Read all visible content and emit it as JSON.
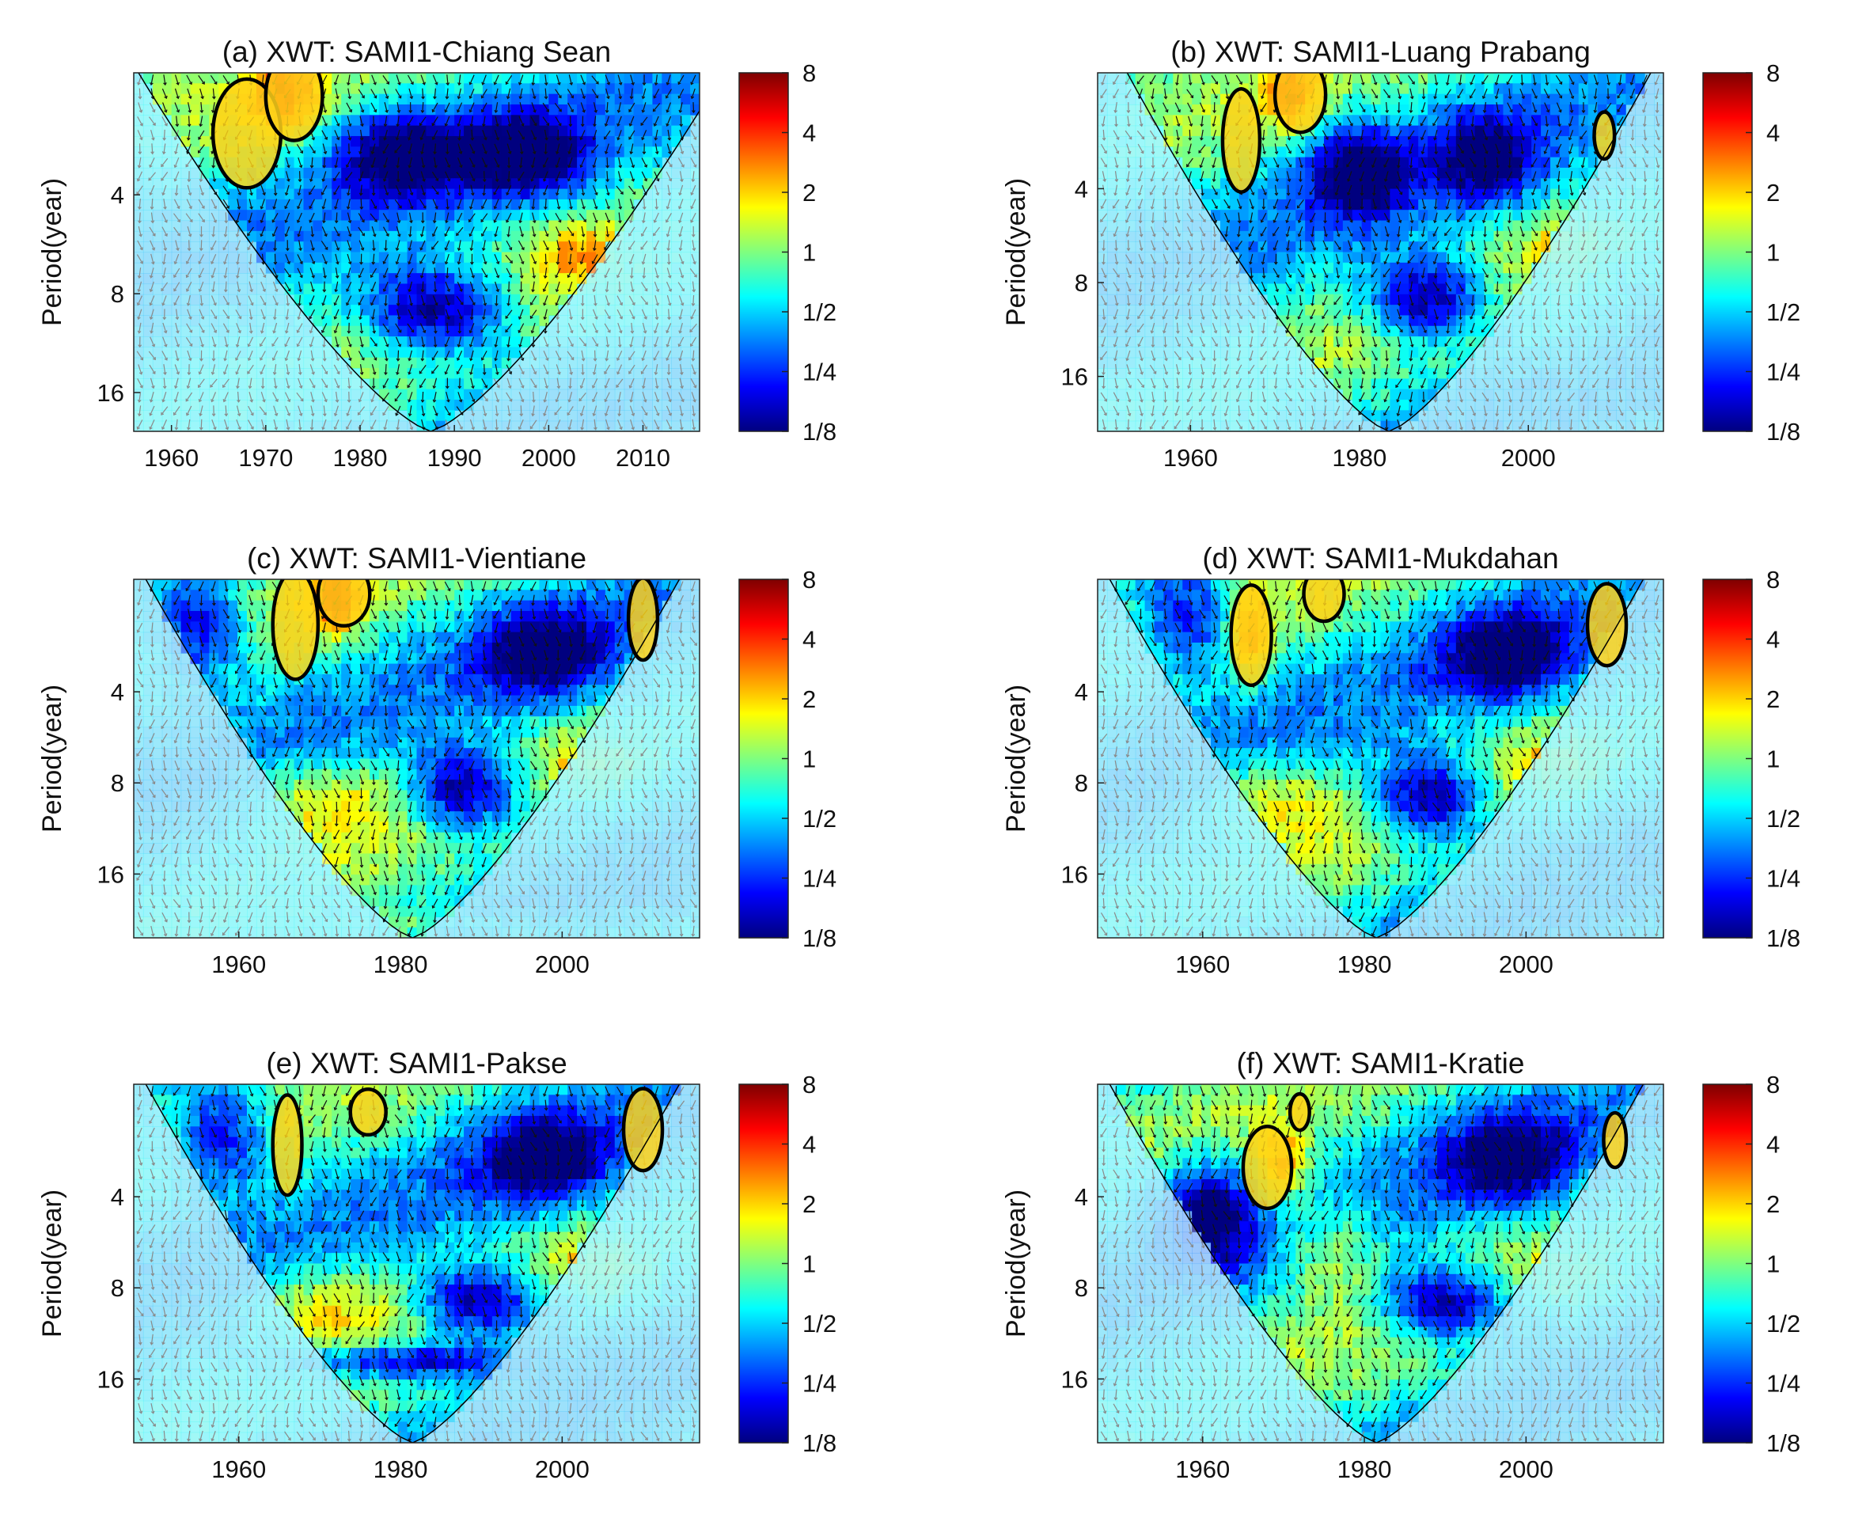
{
  "figure": {
    "y_axis_label": "Period(year)",
    "colorbar_ticks": [
      "8",
      "4",
      "2",
      "1",
      "1/2",
      "1/4",
      "1/8"
    ],
    "colormap": [
      "#00007f",
      "#0000ff",
      "#007fff",
      "#00ffff",
      "#7fff7f",
      "#ffff00",
      "#ff7f00",
      "#ff0000",
      "#7f0000"
    ],
    "outside_coi_color": "#7f9fd0",
    "arrow_color": "#111111",
    "outside_arrow_color": "#8a8a8a",
    "contour_color": "#000000",
    "significant_fill": "#ffd21a"
  },
  "chart_data": [
    {
      "id": "a",
      "type": "heatmap",
      "title": "(a) XWT: SAMI1-Chiang Sean",
      "xlabel": "",
      "ylabel": "Period(year)",
      "xlim": [
        1956,
        2016
      ],
      "xticks": [
        "1960",
        "1970",
        "1980",
        "1990",
        "2000",
        "2010"
      ],
      "xtick_values": [
        1960,
        1970,
        1980,
        1990,
        2000,
        2010
      ],
      "ylim": [
        1.7,
        21
      ],
      "yticks": [
        "4",
        "8",
        "16"
      ],
      "ytick_values": [
        4,
        8,
        16
      ],
      "coi_center_year": 1987.5,
      "coi_half_width_years": 31,
      "significant_regions": [
        {
          "cx": 1968,
          "cy": 2.6,
          "rx": 3.6,
          "ry": 0.55
        },
        {
          "cx": 1973,
          "cy": 2.0,
          "rx": 3.0,
          "ry": 0.45
        }
      ],
      "blobs": [
        {
          "cx": 1972,
          "cy": 2.0,
          "rx": 3.5,
          "ry": 0.35,
          "v": 2.2
        },
        {
          "cx": 1985,
          "cy": 3.0,
          "rx": 7.0,
          "ry": 0.45,
          "v": -2.6
        },
        {
          "cx": 1998,
          "cy": 3.0,
          "rx": 6.0,
          "ry": 0.45,
          "v": -2.4
        },
        {
          "cx": 1988,
          "cy": 9.0,
          "rx": 8.0,
          "ry": 0.45,
          "v": -3.0
        },
        {
          "cx": 2008,
          "cy": 10.0,
          "rx": 9.0,
          "ry": 0.5,
          "v": 0.5
        },
        {
          "cx": 2003,
          "cy": 6.0,
          "rx": 5.0,
          "ry": 0.3,
          "v": 1.2
        }
      ]
    },
    {
      "id": "b",
      "type": "heatmap",
      "title": "(b) XWT: SAMI1-Luang Prabang",
      "xlabel": "",
      "ylabel": "Period(year)",
      "xlim": [
        1949,
        2016
      ],
      "xticks": [
        "1960",
        "1980",
        "2000"
      ],
      "xtick_values": [
        1960,
        1980,
        2000
      ],
      "ylim": [
        1.7,
        24
      ],
      "yticks": [
        "4",
        "8",
        "16"
      ],
      "ytick_values": [
        4,
        8,
        16
      ],
      "coi_center_year": 1983.5,
      "coi_half_width_years": 31,
      "significant_regions": [
        {
          "cx": 1966,
          "cy": 2.8,
          "rx": 2.2,
          "ry": 0.55
        },
        {
          "cx": 1973,
          "cy": 2.0,
          "rx": 3.0,
          "ry": 0.4
        },
        {
          "cx": 2009,
          "cy": 2.7,
          "rx": 1.2,
          "ry": 0.25
        }
      ],
      "blobs": [
        {
          "cx": 1972,
          "cy": 2.0,
          "rx": 3.0,
          "ry": 0.35,
          "v": 2.2
        },
        {
          "cx": 1980,
          "cy": 3.5,
          "rx": 6.0,
          "ry": 0.5,
          "v": -2.5
        },
        {
          "cx": 1995,
          "cy": 3.2,
          "rx": 6.0,
          "ry": 0.5,
          "v": -2.2
        },
        {
          "cx": 1988,
          "cy": 9.0,
          "rx": 7.0,
          "ry": 0.45,
          "v": -3.0
        },
        {
          "cx": 2005,
          "cy": 6.0,
          "rx": 5.0,
          "ry": 0.3,
          "v": 1.2
        },
        {
          "cx": 2005,
          "cy": 12.0,
          "rx": 10.0,
          "ry": 0.5,
          "v": 0.5
        }
      ]
    },
    {
      "id": "c",
      "type": "heatmap",
      "title": "(c) XWT: SAMI1-Vientiane",
      "xlabel": "",
      "ylabel": "Period(year)",
      "xlim": [
        1947,
        2017
      ],
      "xticks": [
        "1960",
        "1980",
        "2000"
      ],
      "xtick_values": [
        1960,
        1980,
        2000
      ],
      "ylim": [
        1.7,
        26
      ],
      "yticks": [
        "4",
        "8",
        "16"
      ],
      "ytick_values": [
        4,
        8,
        16
      ],
      "coi_center_year": 1981.5,
      "coi_half_width_years": 33,
      "significant_regions": [
        {
          "cx": 1967,
          "cy": 2.4,
          "rx": 2.8,
          "ry": 0.6
        },
        {
          "cx": 1973,
          "cy": 1.9,
          "rx": 3.2,
          "ry": 0.35
        },
        {
          "cx": 2010,
          "cy": 2.3,
          "rx": 1.8,
          "ry": 0.45
        }
      ],
      "blobs": [
        {
          "cx": 1972,
          "cy": 2.0,
          "rx": 3.0,
          "ry": 0.35,
          "v": 2.4
        },
        {
          "cx": 1955,
          "cy": 2.5,
          "rx": 6.0,
          "ry": 0.6,
          "v": -2.5
        },
        {
          "cx": 1998,
          "cy": 3.0,
          "rx": 8.0,
          "ry": 0.5,
          "v": -2.3
        },
        {
          "cx": 1988,
          "cy": 8.5,
          "rx": 7.0,
          "ry": 0.45,
          "v": -3.0
        },
        {
          "cx": 1970,
          "cy": 9.0,
          "rx": 10.0,
          "ry": 0.45,
          "v": 1.2
        },
        {
          "cx": 2005,
          "cy": 7.0,
          "rx": 6.0,
          "ry": 0.35,
          "v": 1.3
        },
        {
          "cx": 1990,
          "cy": 24.0,
          "rx": 30.0,
          "ry": 0.2,
          "v": 1.0
        }
      ]
    },
    {
      "id": "d",
      "type": "heatmap",
      "title": "(d) XWT: SAMI1-Mukdahan",
      "xlabel": "",
      "ylabel": "Period(year)",
      "xlim": [
        1947,
        2017
      ],
      "xticks": [
        "1960",
        "1980",
        "2000"
      ],
      "xtick_values": [
        1960,
        1980,
        2000
      ],
      "ylim": [
        1.7,
        26
      ],
      "yticks": [
        "4",
        "8",
        "16"
      ],
      "ytick_values": [
        4,
        8,
        16
      ],
      "coi_center_year": 1981.5,
      "coi_half_width_years": 33,
      "significant_regions": [
        {
          "cx": 1966,
          "cy": 2.6,
          "rx": 2.5,
          "ry": 0.55
        },
        {
          "cx": 1975,
          "cy": 1.9,
          "rx": 2.5,
          "ry": 0.3
        },
        {
          "cx": 2010,
          "cy": 2.4,
          "rx": 2.4,
          "ry": 0.45
        }
      ],
      "blobs": [
        {
          "cx": 1966,
          "cy": 2.6,
          "rx": 2.5,
          "ry": 0.45,
          "v": 2.0
        },
        {
          "cx": 1958,
          "cy": 2.3,
          "rx": 6.0,
          "ry": 0.6,
          "v": -2.4
        },
        {
          "cx": 1998,
          "cy": 3.0,
          "rx": 8.0,
          "ry": 0.5,
          "v": -2.3
        },
        {
          "cx": 1988,
          "cy": 9.0,
          "rx": 7.0,
          "ry": 0.45,
          "v": -3.0
        },
        {
          "cx": 1968,
          "cy": 9.0,
          "rx": 10.0,
          "ry": 0.45,
          "v": 1.2
        },
        {
          "cx": 2005,
          "cy": 7.0,
          "rx": 6.0,
          "ry": 0.35,
          "v": 1.3
        }
      ]
    },
    {
      "id": "e",
      "type": "heatmap",
      "title": "(e) XWT: SAMI1-Pakse",
      "xlabel": "",
      "ylabel": "Period(year)",
      "xlim": [
        1947,
        2017
      ],
      "xticks": [
        "1960",
        "1980",
        "2000"
      ],
      "xtick_values": [
        1960,
        1980,
        2000
      ],
      "ylim": [
        1.7,
        26
      ],
      "yticks": [
        "4",
        "8",
        "16"
      ],
      "ytick_values": [
        4,
        8,
        16
      ],
      "coi_center_year": 1981.5,
      "coi_half_width_years": 33,
      "significant_regions": [
        {
          "cx": 1966,
          "cy": 2.7,
          "rx": 1.8,
          "ry": 0.55
        },
        {
          "cx": 1976,
          "cy": 2.1,
          "rx": 2.2,
          "ry": 0.25
        },
        {
          "cx": 2010,
          "cy": 2.4,
          "rx": 2.4,
          "ry": 0.45
        }
      ],
      "blobs": [
        {
          "cx": 1958,
          "cy": 2.5,
          "rx": 6.0,
          "ry": 0.6,
          "v": -2.4
        },
        {
          "cx": 1998,
          "cy": 3.0,
          "rx": 8.0,
          "ry": 0.5,
          "v": -2.3
        },
        {
          "cx": 1990,
          "cy": 9.0,
          "rx": 8.0,
          "ry": 0.4,
          "v": -3.0
        },
        {
          "cx": 1970,
          "cy": 9.0,
          "rx": 10.0,
          "ry": 0.45,
          "v": 1.2
        },
        {
          "cx": 2005,
          "cy": 7.0,
          "rx": 6.0,
          "ry": 0.35,
          "v": 1.3
        },
        {
          "cx": 1980,
          "cy": 14.0,
          "rx": 14.0,
          "ry": 0.2,
          "v": -2.5
        }
      ]
    },
    {
      "id": "f",
      "type": "heatmap",
      "title": "(f) XWT: SAMI1-Kratie",
      "xlabel": "",
      "ylabel": "Period(year)",
      "xlim": [
        1947,
        2017
      ],
      "xticks": [
        "1960",
        "1980",
        "2000"
      ],
      "xtick_values": [
        1960,
        1980,
        2000
      ],
      "ylim": [
        1.7,
        26
      ],
      "yticks": [
        "4",
        "8",
        "16"
      ],
      "ytick_values": [
        4,
        8,
        16
      ],
      "coi_center_year": 1981.5,
      "coi_half_width_years": 33,
      "significant_regions": [
        {
          "cx": 1968,
          "cy": 3.2,
          "rx": 3.0,
          "ry": 0.45
        },
        {
          "cx": 1972,
          "cy": 2.1,
          "rx": 1.2,
          "ry": 0.2
        },
        {
          "cx": 2011,
          "cy": 2.6,
          "rx": 1.4,
          "ry": 0.3
        }
      ],
      "blobs": [
        {
          "cx": 1970,
          "cy": 3.2,
          "rx": 3.0,
          "ry": 0.4,
          "v": 2.0
        },
        {
          "cx": 1960,
          "cy": 4.5,
          "rx": 6.0,
          "ry": 0.6,
          "v": -2.5
        },
        {
          "cx": 1998,
          "cy": 3.0,
          "rx": 8.0,
          "ry": 0.5,
          "v": -2.3
        },
        {
          "cx": 1990,
          "cy": 9.0,
          "rx": 8.0,
          "ry": 0.4,
          "v": -3.0
        },
        {
          "cx": 1976,
          "cy": 6.0,
          "rx": 6.0,
          "ry": 0.6,
          "v": 1.2
        },
        {
          "cx": 2005,
          "cy": 7.5,
          "rx": 6.0,
          "ry": 0.35,
          "v": 1.0
        }
      ]
    }
  ]
}
